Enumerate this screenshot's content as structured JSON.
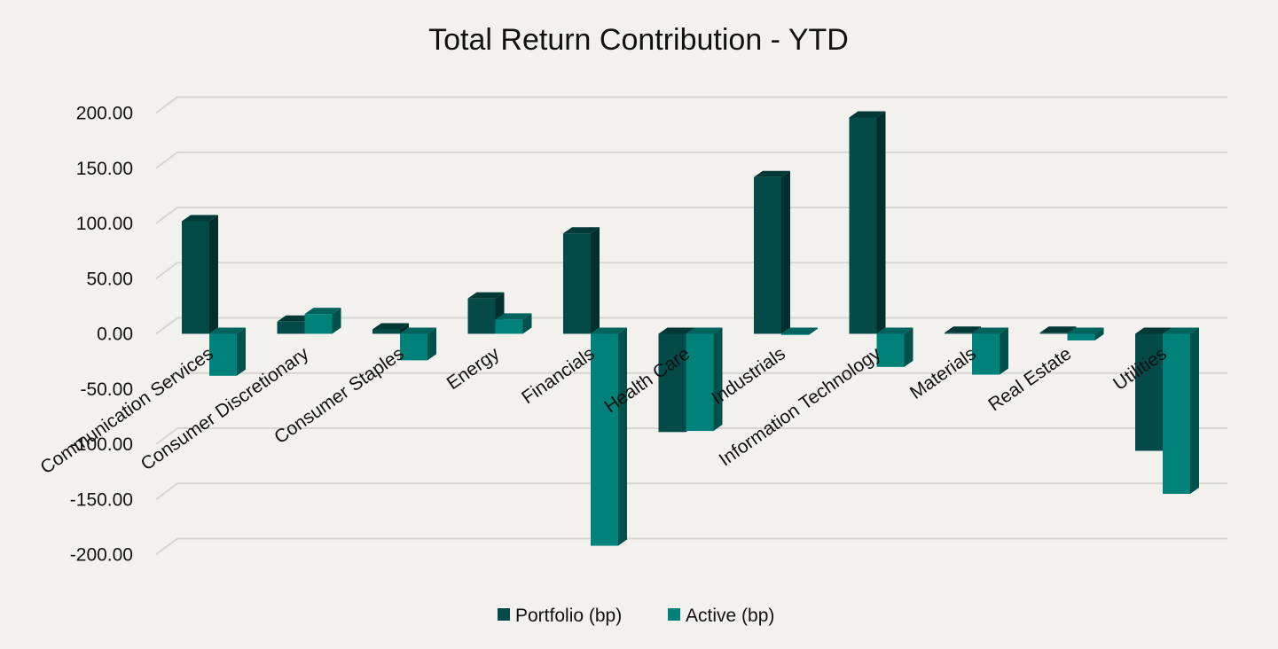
{
  "chart_data": {
    "type": "bar",
    "title": "Total Return Contribution - YTD",
    "xlabel": "",
    "ylabel": "",
    "categories": [
      "Communication Services",
      "Consumer Discretionary",
      "Consumer Staples",
      "Energy",
      "Financials",
      "Health Care",
      "Industrials",
      "Information Technology",
      "Materials",
      "Real Estate",
      "Utilities"
    ],
    "series": [
      {
        "name": "Portfolio (bp)",
        "color": "#034a48",
        "values": [
          102,
          11,
          4,
          32,
          91,
          -89,
          142,
          196,
          1,
          1,
          -106
        ]
      },
      {
        "name": "Active (bp)",
        "color": "#00827a",
        "values": [
          -38,
          18,
          -24,
          13,
          -192,
          -88,
          -1,
          -30,
          -37,
          -6,
          -145
        ]
      }
    ],
    "ylim": [
      -200,
      200
    ],
    "yticks": [
      "200.00",
      "150.00",
      "100.00",
      "50.00",
      "0.00",
      "-50.00",
      "-100.00",
      "-150.00",
      "-200.00"
    ],
    "grid": true,
    "legend_position": "bottom"
  }
}
